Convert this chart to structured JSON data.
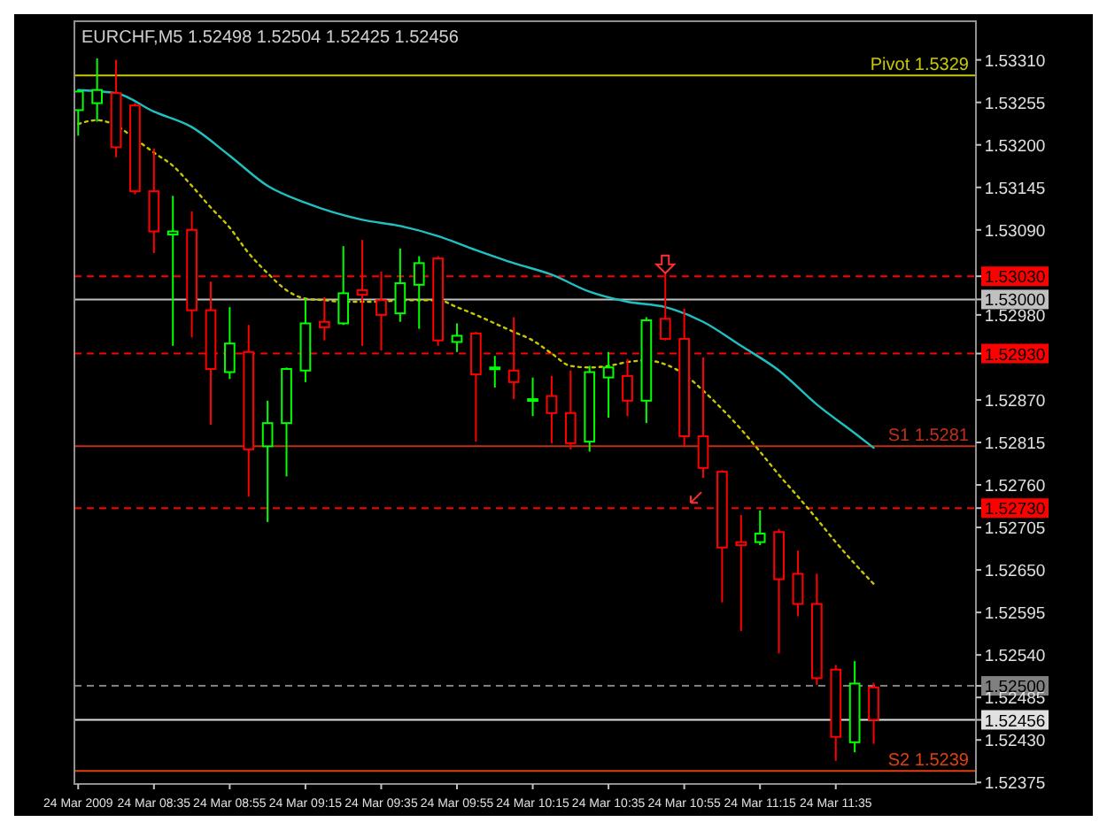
{
  "chart_data": {
    "type": "candlestick",
    "title": "EURCHF,M5  1.52498 1.52504 1.52425 1.52456",
    "x": [
      "2009-03-24T08:15",
      "2009-03-24T08:20",
      "2009-03-24T08:25",
      "2009-03-24T08:30",
      "2009-03-24T08:35",
      "2009-03-24T08:40",
      "2009-03-24T08:45",
      "2009-03-24T08:50",
      "2009-03-24T08:55",
      "2009-03-24T09:00",
      "2009-03-24T09:05",
      "2009-03-24T09:10",
      "2009-03-24T09:15",
      "2009-03-24T09:20",
      "2009-03-24T09:25",
      "2009-03-24T09:30",
      "2009-03-24T09:35",
      "2009-03-24T09:40",
      "2009-03-24T09:45",
      "2009-03-24T09:50",
      "2009-03-24T09:55",
      "2009-03-24T10:00",
      "2009-03-24T10:05",
      "2009-03-24T10:10",
      "2009-03-24T10:15",
      "2009-03-24T10:20",
      "2009-03-24T10:25",
      "2009-03-24T10:30",
      "2009-03-24T10:35",
      "2009-03-24T10:40",
      "2009-03-24T10:45",
      "2009-03-24T10:50",
      "2009-03-24T10:55",
      "2009-03-24T11:00",
      "2009-03-24T11:05",
      "2009-03-24T11:10",
      "2009-03-24T11:15",
      "2009-03-24T11:20",
      "2009-03-24T11:25",
      "2009-03-24T11:30",
      "2009-03-24T11:35",
      "2009-03-24T11:40",
      "2009-03-24T11:45"
    ],
    "ohlc": [
      [
        1.53245,
        1.53271,
        1.53212,
        1.53269
      ],
      [
        1.53254,
        1.53312,
        1.5323,
        1.53271
      ],
      [
        1.53267,
        1.5331,
        1.53184,
        1.53197
      ],
      [
        1.53251,
        1.53254,
        1.53136,
        1.5314
      ],
      [
        1.5314,
        1.53195,
        1.5306,
        1.53088
      ],
      [
        1.53084,
        1.53134,
        1.5294,
        1.53088
      ],
      [
        1.5309,
        1.53114,
        1.52951,
        1.52986
      ],
      [
        1.52986,
        1.53023,
        1.52838,
        1.5291
      ],
      [
        1.52906,
        1.5299,
        1.52897,
        1.52943
      ],
      [
        1.52932,
        1.52967,
        1.52745,
        1.52806
      ],
      [
        1.5281,
        1.52869,
        1.52712,
        1.5284
      ],
      [
        1.5284,
        1.52912,
        1.52771,
        1.5291
      ],
      [
        1.52908,
        1.53001,
        1.52893,
        1.52969
      ],
      [
        1.52971,
        1.53003,
        1.52947,
        1.52964
      ],
      [
        1.52969,
        1.53069,
        1.52967,
        1.53008
      ],
      [
        1.53012,
        1.53077,
        1.5294,
        1.53006
      ],
      [
        1.52999,
        1.53036,
        1.52934,
        1.5298
      ],
      [
        1.52982,
        1.53066,
        1.52971,
        1.53021
      ],
      [
        1.53019,
        1.53056,
        1.52962,
        1.53047
      ],
      [
        1.53053,
        1.53056,
        1.5294,
        1.52947
      ],
      [
        1.52945,
        1.52969,
        1.52932,
        1.52953
      ],
      [
        1.52956,
        1.52958,
        1.52816,
        1.52903
      ],
      [
        1.5291,
        1.52927,
        1.52886,
        1.52912
      ],
      [
        1.52908,
        1.52977,
        1.52871,
        1.52893
      ],
      [
        1.52869,
        1.52899,
        1.52849,
        1.52871
      ],
      [
        1.52875,
        1.52901,
        1.52814,
        1.52853
      ],
      [
        1.52853,
        1.52908,
        1.52806,
        1.52814
      ],
      [
        1.52816,
        1.52914,
        1.52803,
        1.52906
      ],
      [
        1.52899,
        1.52932,
        1.52847,
        1.52912
      ],
      [
        1.52901,
        1.52923,
        1.52849,
        1.52869
      ],
      [
        1.52869,
        1.52977,
        1.5284,
        1.52973
      ],
      [
        1.52975,
        1.53034,
        1.52947,
        1.52949
      ],
      [
        1.52949,
        1.52988,
        1.5281,
        1.52823
      ],
      [
        1.52823,
        1.52925,
        1.52769,
        1.52782
      ],
      [
        1.52777,
        1.52779,
        1.52608,
        1.52679
      ],
      [
        1.52686,
        1.52721,
        1.52571,
        1.52682
      ],
      [
        1.52686,
        1.52727,
        1.52682,
        1.52697
      ],
      [
        1.52699,
        1.52703,
        1.52542,
        1.52638
      ],
      [
        1.52645,
        1.52675,
        1.5259,
        1.52606
      ],
      [
        1.52606,
        1.52645,
        1.52501,
        1.5251
      ],
      [
        1.52521,
        1.52527,
        1.52403,
        1.52434
      ],
      [
        1.52427,
        1.52532,
        1.52414,
        1.52503
      ],
      [
        1.52498,
        1.52504,
        1.52425,
        1.52456
      ]
    ],
    "series": [
      {
        "type": "line",
        "color": "#20c0c0",
        "line_style": "solid",
        "values": [
          1.53271,
          null,
          1.53267,
          null,
          1.53243,
          null,
          1.53223,
          null,
          1.53186,
          null,
          1.53147,
          null,
          1.53125,
          null,
          null,
          1.53103,
          null,
          1.53095,
          null,
          1.53082,
          null,
          1.53064,
          null,
          1.53047,
          null,
          1.53032,
          null,
          1.5301,
          null,
          1.52997,
          null,
          1.5299,
          null,
          1.52971,
          null,
          1.5294,
          null,
          1.52908,
          null,
          1.52864,
          null,
          1.52827,
          1.52808
        ]
      },
      {
        "type": "line",
        "color": "#c8c800",
        "line_style": "dotted",
        "values": [
          1.53227,
          1.53232,
          1.53225,
          1.53208,
          1.5319,
          1.53173,
          1.53147,
          1.53119,
          1.53093,
          1.5306,
          1.53034,
          1.53012,
          1.53001,
          1.52999,
          1.52997,
          1.52997,
          1.52997,
          1.52999,
          1.52999,
          1.52999,
          1.5299,
          1.5298,
          1.52969,
          1.52958,
          1.52947,
          1.5293,
          1.52914,
          1.52912,
          1.52914,
          1.52919,
          1.52921,
          1.52916,
          1.52903,
          1.52882,
          1.52858,
          1.52832,
          1.52803,
          1.52773,
          1.52745,
          1.52716,
          1.52686,
          1.52658,
          1.52632
        ]
      }
    ],
    "xlim": [
      "2009-03-24T08:14",
      "2009-03-24T12:12"
    ],
    "xticks": [
      {
        "value": "2009-03-24T08:15",
        "label": "24 Mar 2009"
      },
      {
        "value": "2009-03-24T08:35",
        "label": "24 Mar 08:35"
      },
      {
        "value": "2009-03-24T08:55",
        "label": "24 Mar 08:55"
      },
      {
        "value": "2009-03-24T09:15",
        "label": "24 Mar 09:15"
      },
      {
        "value": "2009-03-24T09:35",
        "label": "24 Mar 09:35"
      },
      {
        "value": "2009-03-24T09:55",
        "label": "24 Mar 09:55"
      },
      {
        "value": "2009-03-24T10:15",
        "label": "24 Mar 10:15"
      },
      {
        "value": "2009-03-24T10:35",
        "label": "24 Mar 10:35"
      },
      {
        "value": "2009-03-24T10:55",
        "label": "24 Mar 10:55"
      },
      {
        "value": "2009-03-24T11:15",
        "label": "24 Mar 11:15"
      },
      {
        "value": "2009-03-24T11:35",
        "label": "24 Mar 11:35"
      }
    ],
    "ylim": [
      1.52373,
      1.5336
    ],
    "yticks": [
      {
        "value": 1.5331,
        "label": "1.53310"
      },
      {
        "value": 1.53255,
        "label": "1.53255"
      },
      {
        "value": 1.532,
        "label": "1.53200"
      },
      {
        "value": 1.53145,
        "label": "1.53145"
      },
      {
        "value": 1.5309,
        "label": "1.53090"
      },
      {
        "value": 1.5303,
        "label": "1.53030"
      },
      {
        "value": 1.53,
        "label": "1.53000"
      },
      {
        "value": 1.5298,
        "label": "1.52980"
      },
      {
        "value": 1.5293,
        "label": "1.52930"
      },
      {
        "value": 1.5287,
        "label": "1.52870"
      },
      {
        "value": 1.52815,
        "label": "1.52815"
      },
      {
        "value": 1.5276,
        "label": "1.52760"
      },
      {
        "value": 1.5273,
        "label": "1.52730"
      },
      {
        "value": 1.52705,
        "label": "1.52705"
      },
      {
        "value": 1.5265,
        "label": "1.52650"
      },
      {
        "value": 1.52595,
        "label": "1.52595"
      },
      {
        "value": 1.5254,
        "label": "1.52540"
      },
      {
        "value": 1.525,
        "label": "1.52500"
      },
      {
        "value": 1.52485,
        "label": "1.52485"
      },
      {
        "value": 1.52456,
        "label": "1.52456"
      },
      {
        "value": 1.5243,
        "label": "1.52430"
      },
      {
        "value": 1.52375,
        "label": "1.52375"
      }
    ],
    "ref_lines": [
      {
        "axis": "y",
        "value": 1.5329,
        "label": "Pivot 1.5329",
        "color": "#c8c800",
        "line_style": "solid"
      },
      {
        "axis": "y",
        "value": 1.5281,
        "label": "S1 1.5281",
        "color": "#c03018",
        "line_style": "solid"
      },
      {
        "axis": "y",
        "value": 1.5239,
        "label": "S2 1.5239",
        "color": "#e04010",
        "line_style": "solid"
      },
      {
        "axis": "y",
        "value": 1.5303,
        "color": "#ff0000",
        "line_style": "dashed"
      },
      {
        "axis": "y",
        "value": 1.53,
        "color": "#c0c0c0",
        "line_style": "solid"
      },
      {
        "axis": "y",
        "value": 1.5293,
        "color": "#ff0000",
        "line_style": "dashed"
      },
      {
        "axis": "y",
        "value": 1.5273,
        "color": "#ff0000",
        "line_style": "dashed"
      },
      {
        "axis": "y",
        "value": 1.525,
        "color": "#808080",
        "line_style": "dashed"
      },
      {
        "axis": "y",
        "value": 1.52456,
        "color": "#e0e0e0",
        "line_style": "solid"
      }
    ]
  }
}
